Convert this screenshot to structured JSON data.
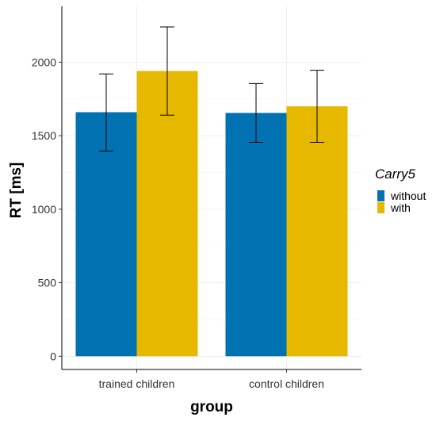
{
  "chart_data": {
    "type": "bar",
    "xlabel": "group",
    "ylabel": "RT [ms]",
    "categories": [
      "trained children",
      "control children"
    ],
    "ylim": [
      -90,
      2380
    ],
    "y_ticks": [
      0,
      500,
      1000,
      1500,
      2000
    ],
    "y_tick_labels": [
      "0",
      "500",
      "1000",
      "1500",
      "2000"
    ],
    "grid": true,
    "legend": {
      "title": "Carry5",
      "position": "right"
    },
    "series": [
      {
        "name": "without",
        "color": "#0072B2",
        "values": [
          1660,
          1655
        ],
        "error_low": [
          1395,
          1455
        ],
        "error_high": [
          1920,
          1855
        ]
      },
      {
        "name": "with",
        "color": "#E6B800",
        "values": [
          1940,
          1700
        ],
        "error_low": [
          1640,
          1455
        ],
        "error_high": [
          2240,
          1945
        ]
      }
    ]
  }
}
